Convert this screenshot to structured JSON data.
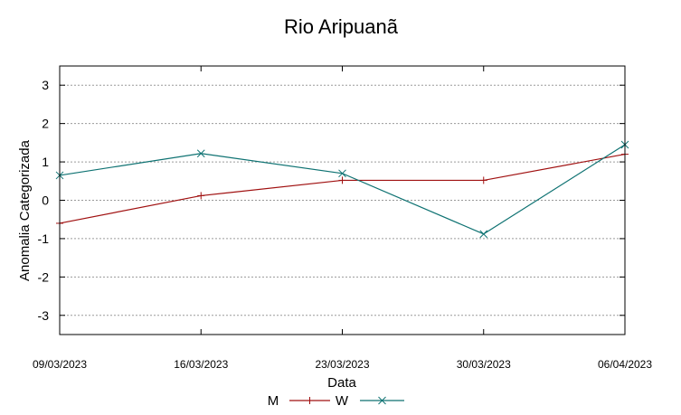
{
  "chart_data": {
    "type": "line",
    "title": "Rio Aripuanã",
    "xlabel": "Data",
    "ylabel": "Anomalia Categorizada",
    "categories": [
      "09/03/2023",
      "16/03/2023",
      "23/03/2023",
      "30/03/2023",
      "06/04/2023"
    ],
    "ylim": [
      -3.5,
      3.5
    ],
    "yticks": [
      "3",
      "2",
      "1",
      "0",
      "-1",
      "-2",
      "-3"
    ],
    "grid": true,
    "legend_position": "bottom",
    "series": [
      {
        "name": "M",
        "color": "#a01010",
        "marker": "plus",
        "values": [
          -0.6,
          0.12,
          0.52,
          0.52,
          1.2
        ]
      },
      {
        "name": "W",
        "color": "#0e7272",
        "marker": "x",
        "values": [
          0.65,
          1.22,
          0.7,
          -0.88,
          1.45
        ]
      }
    ]
  }
}
